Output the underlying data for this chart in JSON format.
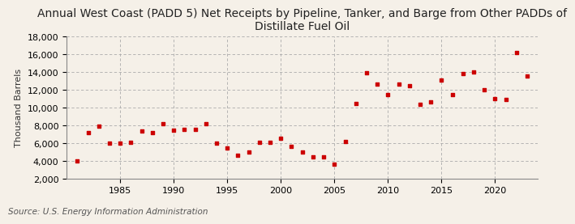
{
  "title": "Annual West Coast (PADD 5) Net Receipts by Pipeline, Tanker, and Barge from Other PADDs of\nDistillate Fuel Oil",
  "ylabel": "Thousand Barrels",
  "source": "Source: U.S. Energy Information Administration",
  "background_color": "#f5f0e8",
  "marker_color": "#cc0000",
  "years": [
    1981,
    1982,
    1983,
    1984,
    1985,
    1986,
    1987,
    1988,
    1989,
    1990,
    1991,
    1992,
    1993,
    1994,
    1995,
    1996,
    1997,
    1998,
    1999,
    2000,
    2001,
    2002,
    2003,
    2004,
    2005,
    2006,
    2007,
    2008,
    2009,
    2010,
    2011,
    2012,
    2013,
    2014,
    2015,
    2016,
    2017,
    2018,
    2019,
    2020,
    2021,
    2022,
    2023
  ],
  "values": [
    4000,
    7200,
    7900,
    6000,
    6000,
    6100,
    7400,
    7200,
    8200,
    7500,
    7600,
    7600,
    8200,
    6000,
    5500,
    4700,
    5000,
    6100,
    6100,
    6600,
    5700,
    5000,
    4500,
    4500,
    3700,
    6200,
    10500,
    13900,
    12700,
    11500,
    12700,
    12500,
    10400,
    10700,
    13100,
    11500,
    13800,
    14000,
    12000,
    11000,
    10900,
    16200,
    13600
  ],
  "ylim": [
    2000,
    18000
  ],
  "yticks": [
    2000,
    4000,
    6000,
    8000,
    10000,
    12000,
    14000,
    16000,
    18000
  ],
  "xticks": [
    1985,
    1990,
    1995,
    2000,
    2005,
    2010,
    2015,
    2020
  ],
  "grid_color": "#aaaaaa",
  "title_fontsize": 10,
  "axis_fontsize": 8,
  "source_fontsize": 7.5
}
